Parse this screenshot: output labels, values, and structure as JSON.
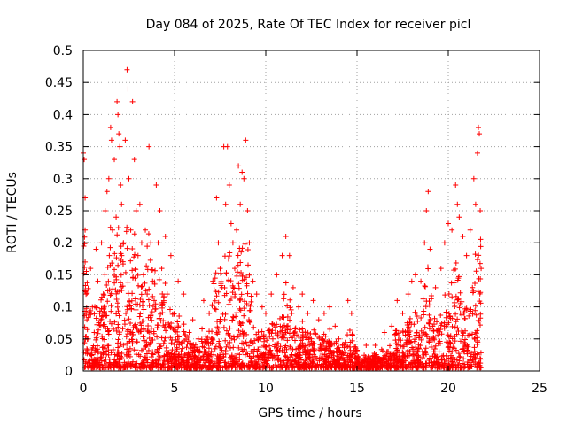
{
  "chart_data": {
    "type": "scatter",
    "title": "Day 084 of 2025, Rate Of TEC Index for receiver picl",
    "xlabel": "GPS time / hours",
    "ylabel": "ROTI / TECUs",
    "xlim": [
      0,
      25
    ],
    "ylim": [
      0,
      0.5
    ],
    "x_ticks": [
      "0",
      "5",
      "10",
      "15",
      "20",
      "25"
    ],
    "y_ticks": [
      "0",
      "0.05",
      "0.1",
      "0.15",
      "0.2",
      "0.25",
      "0.3",
      "0.35",
      "0.4",
      "0.45",
      "0.5"
    ],
    "x_tick_values": [
      0,
      5,
      10,
      15,
      20,
      25
    ],
    "y_tick_values": [
      0,
      0.05,
      0.1,
      0.15,
      0.2,
      0.25,
      0.3,
      0.35,
      0.4,
      0.45,
      0.5
    ],
    "grid": true,
    "marker": "+",
    "color": "#ff0000",
    "points": [
      [
        0.0,
        0.34
      ],
      [
        0.05,
        0.33
      ],
      [
        0.1,
        0.27
      ],
      [
        0.1,
        0.22
      ],
      [
        0.1,
        0.17
      ],
      [
        0.15,
        0.12
      ],
      [
        0.2,
        0.08
      ],
      [
        0.25,
        0.05
      ],
      [
        0.3,
        0.03
      ],
      [
        0.4,
        0.16
      ],
      [
        0.5,
        0.1
      ],
      [
        0.6,
        0.06
      ],
      [
        0.7,
        0.19
      ],
      [
        0.8,
        0.14
      ],
      [
        0.9,
        0.09
      ],
      [
        1.0,
        0.2
      ],
      [
        1.1,
        0.12
      ],
      [
        1.2,
        0.25
      ],
      [
        1.3,
        0.28
      ],
      [
        1.4,
        0.3
      ],
      [
        1.5,
        0.38
      ],
      [
        1.55,
        0.36
      ],
      [
        1.6,
        0.22
      ],
      [
        1.7,
        0.33
      ],
      [
        1.8,
        0.24
      ],
      [
        1.85,
        0.42
      ],
      [
        1.9,
        0.4
      ],
      [
        1.95,
        0.37
      ],
      [
        2.0,
        0.35
      ],
      [
        2.05,
        0.29
      ],
      [
        2.1,
        0.26
      ],
      [
        2.2,
        0.2
      ],
      [
        2.3,
        0.36
      ],
      [
        2.4,
        0.47
      ],
      [
        2.45,
        0.44
      ],
      [
        2.5,
        0.3
      ],
      [
        2.6,
        0.22
      ],
      [
        2.7,
        0.42
      ],
      [
        2.8,
        0.33
      ],
      [
        2.9,
        0.25
      ],
      [
        3.0,
        0.18
      ],
      [
        3.1,
        0.26
      ],
      [
        3.2,
        0.2
      ],
      [
        3.3,
        0.15
      ],
      [
        3.4,
        0.22
      ],
      [
        3.5,
        0.12
      ],
      [
        3.6,
        0.35
      ],
      [
        3.7,
        0.2
      ],
      [
        3.8,
        0.14
      ],
      [
        4.0,
        0.29
      ],
      [
        4.1,
        0.2
      ],
      [
        4.2,
        0.25
      ],
      [
        4.3,
        0.16
      ],
      [
        4.5,
        0.21
      ],
      [
        4.6,
        0.12
      ],
      [
        4.8,
        0.18
      ],
      [
        5.0,
        0.09
      ],
      [
        5.2,
        0.14
      ],
      [
        5.5,
        0.12
      ],
      [
        5.8,
        0.06
      ],
      [
        6.0,
        0.08
      ],
      [
        6.3,
        0.05
      ],
      [
        6.6,
        0.11
      ],
      [
        6.9,
        0.09
      ],
      [
        7.1,
        0.14
      ],
      [
        7.3,
        0.27
      ],
      [
        7.4,
        0.2
      ],
      [
        7.5,
        0.16
      ],
      [
        7.7,
        0.35
      ],
      [
        7.8,
        0.26
      ],
      [
        7.9,
        0.35
      ],
      [
        8.0,
        0.29
      ],
      [
        8.1,
        0.23
      ],
      [
        8.2,
        0.2
      ],
      [
        8.3,
        0.16
      ],
      [
        8.4,
        0.22
      ],
      [
        8.5,
        0.32
      ],
      [
        8.6,
        0.26
      ],
      [
        8.7,
        0.31
      ],
      [
        8.8,
        0.3
      ],
      [
        8.9,
        0.36
      ],
      [
        9.0,
        0.25
      ],
      [
        9.1,
        0.2
      ],
      [
        9.3,
        0.14
      ],
      [
        9.5,
        0.12
      ],
      [
        9.8,
        0.1
      ],
      [
        10.0,
        0.09
      ],
      [
        10.3,
        0.12
      ],
      [
        10.6,
        0.15
      ],
      [
        10.9,
        0.18
      ],
      [
        11.1,
        0.21
      ],
      [
        11.3,
        0.18
      ],
      [
        11.5,
        0.13
      ],
      [
        11.8,
        0.1
      ],
      [
        12.0,
        0.12
      ],
      [
        12.3,
        0.09
      ],
      [
        12.6,
        0.11
      ],
      [
        12.9,
        0.08
      ],
      [
        13.2,
        0.09
      ],
      [
        13.5,
        0.1
      ],
      [
        13.8,
        0.07
      ],
      [
        14.0,
        0.05
      ],
      [
        14.2,
        0.04
      ],
      [
        14.5,
        0.11
      ],
      [
        14.7,
        0.09
      ],
      [
        15.0,
        0.03
      ],
      [
        15.5,
        0.04
      ],
      [
        16.0,
        0.04
      ],
      [
        16.5,
        0.06
      ],
      [
        16.9,
        0.07
      ],
      [
        17.2,
        0.11
      ],
      [
        17.5,
        0.09
      ],
      [
        17.8,
        0.12
      ],
      [
        18.0,
        0.14
      ],
      [
        18.2,
        0.15
      ],
      [
        18.5,
        0.14
      ],
      [
        18.7,
        0.2
      ],
      [
        18.8,
        0.25
      ],
      [
        18.9,
        0.28
      ],
      [
        19.0,
        0.19
      ],
      [
        19.3,
        0.13
      ],
      [
        19.6,
        0.16
      ],
      [
        19.8,
        0.2
      ],
      [
        20.0,
        0.23
      ],
      [
        20.2,
        0.22
      ],
      [
        20.4,
        0.29
      ],
      [
        20.5,
        0.26
      ],
      [
        20.6,
        0.24
      ],
      [
        20.8,
        0.21
      ],
      [
        21.0,
        0.18
      ],
      [
        21.2,
        0.22
      ],
      [
        21.4,
        0.3
      ],
      [
        21.5,
        0.26
      ],
      [
        21.6,
        0.34
      ],
      [
        21.65,
        0.38
      ],
      [
        21.7,
        0.37
      ],
      [
        21.75,
        0.25
      ],
      [
        21.8,
        0.16
      ]
    ]
  }
}
